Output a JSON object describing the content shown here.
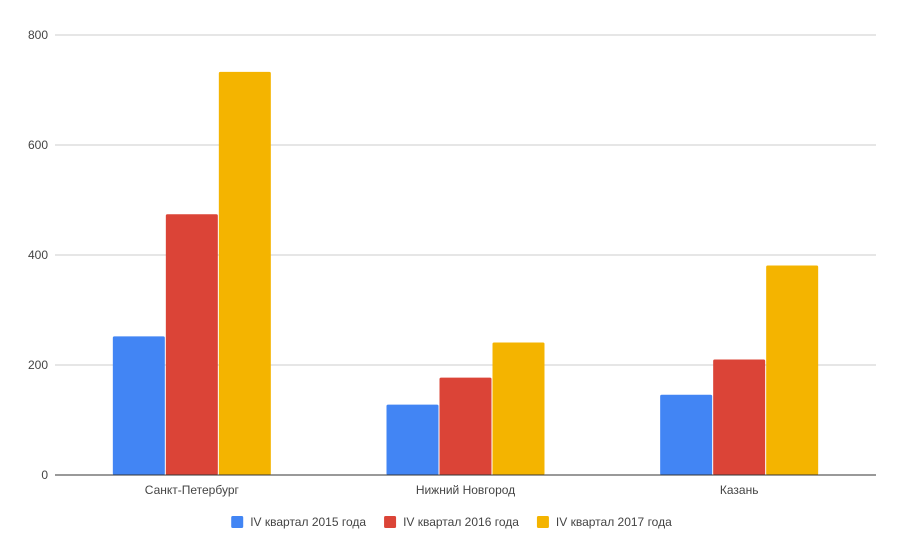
{
  "chart_data": {
    "type": "bar",
    "title": "",
    "xlabel": "",
    "ylabel": "",
    "categories": [
      "Санкт-Петербург",
      "Нижний Новгород",
      "Казань"
    ],
    "series": [
      {
        "name": "IV квартал 2015 года",
        "color": "#4285F4",
        "values": [
          252,
          128,
          146
        ]
      },
      {
        "name": "IV квартал 2016 года",
        "color": "#DB4437",
        "values": [
          474,
          177,
          210
        ]
      },
      {
        "name": "IV квартал 2017 года",
        "color": "#F4B400",
        "values": [
          733,
          241,
          381
        ]
      }
    ],
    "ylim": [
      0,
      800
    ],
    "yticks": [
      0,
      200,
      400,
      600,
      800
    ],
    "ytick_labels": [
      "0",
      "200",
      "400",
      "600",
      "800"
    ],
    "grid": true,
    "legend_position": "bottom"
  }
}
